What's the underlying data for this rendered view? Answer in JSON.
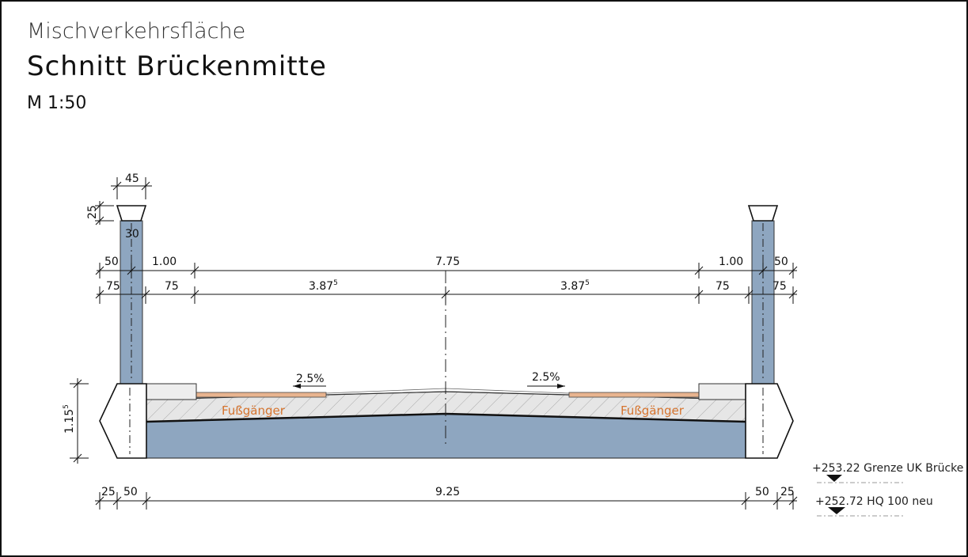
{
  "header": {
    "subtitle": "Mischverkehrsfläche",
    "title": "Schnitt Brückenmitte",
    "scale": "M 1:50"
  },
  "dims": {
    "post_width": "45",
    "head_height": "25",
    "post_inner": "30",
    "top_left_50": "50",
    "top_left_100": "1.00",
    "top_center": "7.75",
    "top_right_100": "1.00",
    "top_right_50": "50",
    "mid_left_75a": "75",
    "mid_left_75b": "75",
    "mid_left_half": "3.87",
    "mid_right_half": "3.87",
    "half_sup": "5",
    "mid_right_75a": "75",
    "mid_right_75b": "75",
    "height_main": "1.15",
    "height_sup": "5",
    "bottom_left_25": "25",
    "bottom_left_50": "50",
    "bottom_center": "9.25",
    "bottom_right_50": "50",
    "bottom_right_25": "25"
  },
  "slopes": {
    "left": "2.5%",
    "right": "2.5%"
  },
  "labels": {
    "ped_left": "Fußgänger",
    "ped_right": "Fußgänger"
  },
  "levels": {
    "uk_bridge": "+253.22 Grenze UK Brücke",
    "hq100": "+252.72 HQ 100 neu"
  },
  "colors": {
    "post": "#8ea6c0",
    "deck": "#8ea6c0",
    "hatch": "#e4e4e4",
    "sidewalk": "#e8b48f",
    "pedestrian_text": "#d6742e"
  }
}
